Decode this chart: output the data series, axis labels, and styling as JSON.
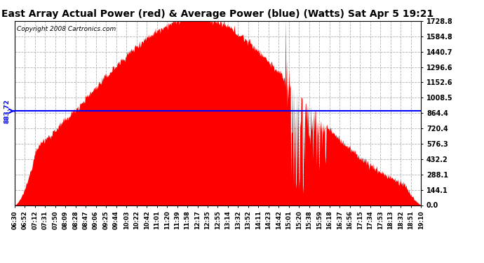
{
  "title": "East Array Actual Power (red) & Average Power (blue) (Watts) Sat Apr 5 19:21",
  "copyright": "Copyright 2008 Cartronics.com",
  "average_power": 883.72,
  "y_max": 1728.8,
  "y_ticks": [
    0.0,
    144.1,
    288.1,
    432.2,
    576.3,
    720.4,
    864.4,
    1008.5,
    1152.6,
    1296.6,
    1440.7,
    1584.8,
    1728.8
  ],
  "fig_bg_color": "#ffffff",
  "plot_bg_color": "#ffffff",
  "fill_color": "#ff0000",
  "line_color": "#0000ff",
  "title_color": "#000000",
  "title_fontsize": 10,
  "copyright_fontsize": 6.5,
  "tick_fontsize": 7,
  "x_tick_fontsize": 6,
  "grid_color": "#aaaaaa",
  "x_labels": [
    "06:30",
    "06:52",
    "07:12",
    "07:31",
    "07:50",
    "08:09",
    "08:28",
    "08:47",
    "09:06",
    "09:25",
    "09:44",
    "10:03",
    "10:22",
    "10:42",
    "11:01",
    "11:20",
    "11:39",
    "11:58",
    "12:17",
    "12:35",
    "12:55",
    "13:14",
    "13:32",
    "13:52",
    "14:11",
    "14:23",
    "14:42",
    "15:01",
    "15:20",
    "15:38",
    "15:59",
    "16:18",
    "16:37",
    "16:56",
    "17:15",
    "17:34",
    "17:53",
    "18:13",
    "18:32",
    "18:51",
    "19:10"
  ]
}
